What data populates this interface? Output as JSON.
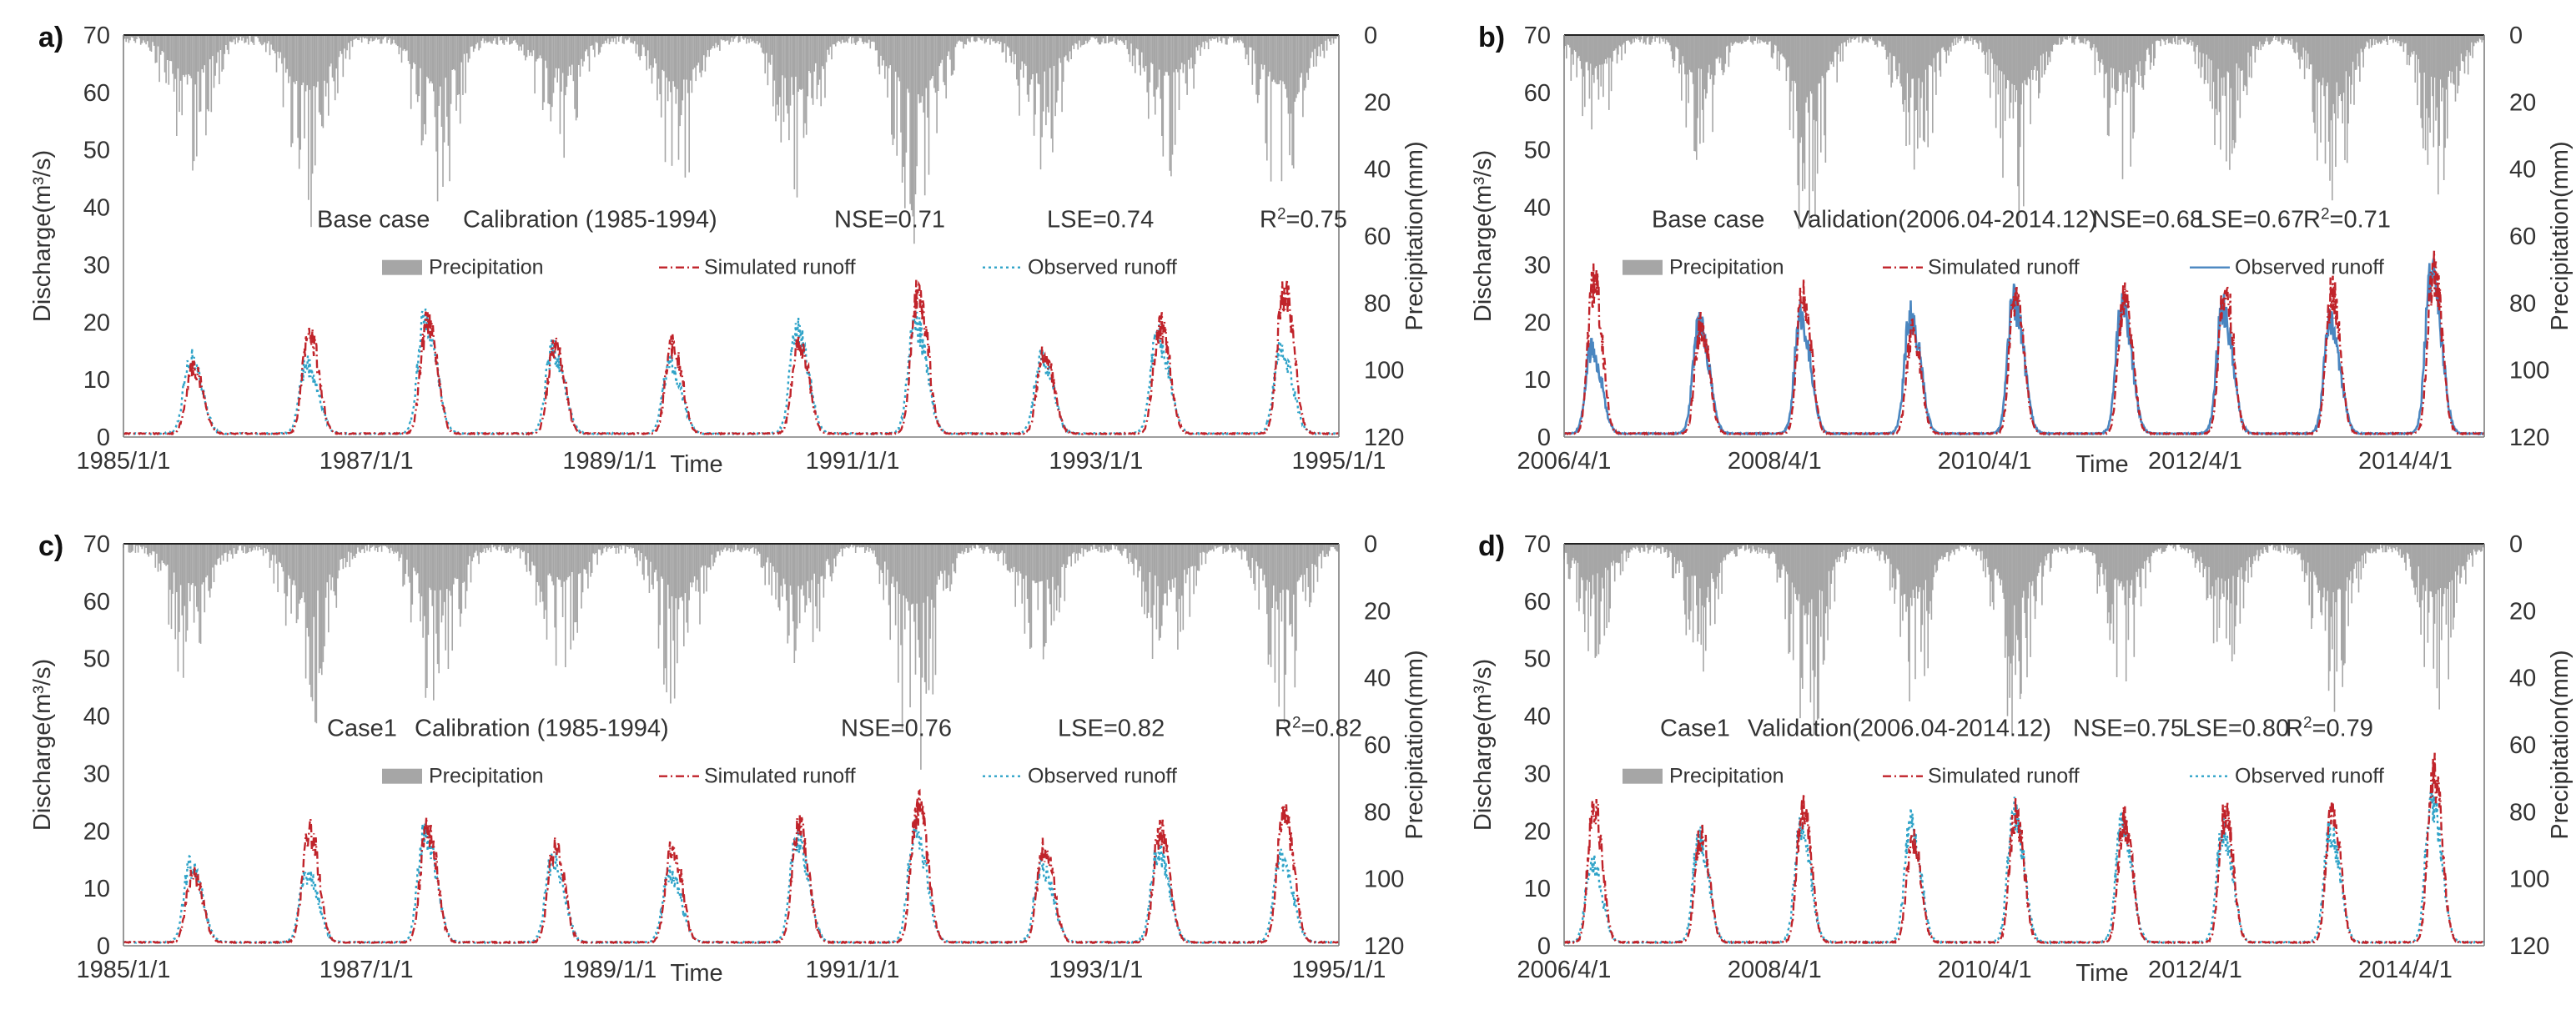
{
  "colors": {
    "precip": "#a6a6a6",
    "simulated": "#c0232a",
    "observed_dotted": "#2fa3c8",
    "observed_solid": "#4a86c0",
    "axis": "#7f7f7f",
    "text": "#333333"
  },
  "chart_data": [
    {
      "panel": "a)",
      "type": "line",
      "case_label": "Base case",
      "period_label": "Calibration (1985-1994)",
      "stats": {
        "nse": "NSE=0.71",
        "lse": "LSE=0.74",
        "r2_prefix": "R",
        "r2_value": "=0.75"
      },
      "xlabel": "Time",
      "ylabel": "Discharge(m³/s)",
      "ylabel2": "Precipitation(mm)",
      "ylim": [
        0,
        70
      ],
      "ylim2": [
        0,
        120
      ],
      "y_ticks": [
        "0",
        "10",
        "20",
        "30",
        "40",
        "50",
        "60",
        "70"
      ],
      "y2_ticks": [
        "0",
        "20",
        "40",
        "60",
        "80",
        "100",
        "120"
      ],
      "x_ticks": [
        "1985/1/1",
        "1987/1/1",
        "1989/1/1",
        "1991/1/1",
        "1993/1/1",
        "1995/1/1"
      ],
      "x_range": [
        "1985-01-01",
        "1995-01-01"
      ],
      "legend": {
        "precip": "Precipitation",
        "simulated": "Simulated runoff",
        "observed": "Observed runoff"
      },
      "observed_style": "dotted",
      "series": [
        {
          "name": "Simulated runoff",
          "peak_dates": [
            "1985-08-10",
            "1986-07-25",
            "1987-07-15",
            "1988-08-01",
            "1989-07-20",
            "1990-08-05",
            "1991-07-28",
            "1992-08-10",
            "1993-07-25",
            "1994-08-01"
          ],
          "peaks": [
            10,
            14.5,
            16.5,
            13,
            13,
            13.5,
            21,
            12,
            16,
            21
          ]
        },
        {
          "name": "Observed runoff",
          "peak_dates": [
            "1985-08-05",
            "1986-07-20",
            "1987-07-10",
            "1988-07-28",
            "1989-07-15",
            "1990-08-01",
            "1991-07-22",
            "1992-08-05",
            "1993-07-20",
            "1994-07-25"
          ],
          "peaks": [
            11,
            10,
            17,
            12,
            10,
            15,
            16,
            11,
            14,
            12
          ]
        },
        {
          "name": "Precipitation",
          "peak_dates": [
            "1985-07-20",
            "1986-07-15",
            "1987-08-01",
            "1988-08-05",
            "1989-07-25",
            "1990-07-20",
            "1991-07-10",
            "1992-07-15",
            "1993-08-01",
            "1994-07-20"
          ],
          "peaks": [
            47,
            60,
            56,
            40,
            55,
            50,
            70,
            45,
            44,
            55
          ]
        }
      ]
    },
    {
      "panel": "b)",
      "type": "line",
      "case_label": "Base case",
      "period_label": "Validation(2006.04-2014.12)",
      "stats": {
        "nse": "NSE=0.68",
        "lse": "LSE=0.67",
        "r2_prefix": "R",
        "r2_value": "=0.71"
      },
      "xlabel": "Time",
      "ylabel": "Discharge(m³/s)",
      "ylabel2": "Precipitation(mm)",
      "ylim": [
        0,
        70
      ],
      "ylim2": [
        0,
        120
      ],
      "y_ticks": [
        "0",
        "10",
        "20",
        "30",
        "40",
        "50",
        "60",
        "70"
      ],
      "y2_ticks": [
        "0",
        "20",
        "40",
        "60",
        "80",
        "100",
        "120"
      ],
      "x_ticks": [
        "2006/4/1",
        "2008/4/1",
        "2010/4/1",
        "2012/4/1",
        "2014/4/1"
      ],
      "x_range": [
        "2006-04-01",
        "2014-12-31"
      ],
      "legend": {
        "precip": "Precipitation",
        "simulated": "Simulated runoff",
        "observed": "Observed runoff"
      },
      "observed_style": "solid",
      "series": [
        {
          "name": "Simulated runoff",
          "peak_dates": [
            "2006-07-25",
            "2007-08-01",
            "2008-07-20",
            "2009-08-05",
            "2010-07-28",
            "2011-08-10",
            "2012-07-25",
            "2013-08-01",
            "2014-07-20"
          ],
          "peaks": [
            22.5,
            16,
            21,
            15,
            20,
            20,
            22,
            21,
            24
          ]
        },
        {
          "name": "Observed runoff",
          "peak_dates": [
            "2006-07-20",
            "2007-07-28",
            "2008-07-15",
            "2009-08-01",
            "2010-07-25",
            "2011-08-05",
            "2012-07-20",
            "2013-07-28",
            "2014-07-15"
          ],
          "peaks": [
            12,
            16,
            17,
            17,
            19,
            18,
            18,
            16,
            23
          ]
        },
        {
          "name": "Precipitation",
          "peak_dates": [
            "2006-07-15",
            "2007-07-20",
            "2008-07-25",
            "2009-08-01",
            "2010-07-20",
            "2011-07-25",
            "2012-07-15",
            "2013-07-20",
            "2014-07-25"
          ],
          "peaks": [
            35,
            40,
            68,
            50,
            60,
            45,
            42,
            58,
            52
          ]
        }
      ]
    },
    {
      "panel": "c)",
      "type": "line",
      "case_label": "Case1",
      "period_label": "Calibration (1985-1994)",
      "stats": {
        "nse": "NSE=0.76",
        "lse": "LSE=0.82",
        "r2_prefix": "R",
        "r2_value": "=0.82"
      },
      "xlabel": "Time",
      "ylabel": "Discharge(m³/s)",
      "ylabel2": "Precipitation(mm)",
      "ylim": [
        0,
        70
      ],
      "ylim2": [
        0,
        120
      ],
      "y_ticks": [
        "0",
        "10",
        "20",
        "30",
        "40",
        "50",
        "60",
        "70"
      ],
      "y2_ticks": [
        "0",
        "20",
        "40",
        "60",
        "80",
        "100",
        "120"
      ],
      "x_ticks": [
        "1985/1/1",
        "1987/1/1",
        "1989/1/1",
        "1991/1/1",
        "1993/1/1",
        "1995/1/1"
      ],
      "x_range": [
        "1985-01-01",
        "1995-01-01"
      ],
      "legend": {
        "precip": "Precipitation",
        "simulated": "Simulated runoff",
        "observed": "Observed runoff"
      },
      "observed_style": "dotted",
      "series": [
        {
          "name": "Simulated runoff",
          "peak_dates": [
            "1985-08-10",
            "1986-07-25",
            "1987-07-15",
            "1988-08-01",
            "1989-07-20",
            "1990-08-05",
            "1991-07-28",
            "1992-08-10",
            "1993-07-25",
            "1994-08-01"
          ],
          "peaks": [
            10,
            16.5,
            17,
            14,
            14,
            17,
            20,
            14,
            16.5,
            18.5
          ]
        },
        {
          "name": "Observed runoff",
          "peak_dates": [
            "1985-08-05",
            "1986-07-20",
            "1987-07-10",
            "1988-07-28",
            "1989-07-15",
            "1990-08-01",
            "1991-07-22",
            "1992-08-05",
            "1993-07-20",
            "1994-07-25"
          ],
          "peaks": [
            11,
            10,
            16,
            12,
            10,
            15,
            16,
            11,
            13,
            12
          ]
        },
        {
          "name": "Precipitation",
          "peak_dates": [
            "1985-07-20",
            "1986-07-15",
            "1987-08-01",
            "1988-08-05",
            "1989-07-25",
            "1990-07-20",
            "1991-07-10",
            "1992-07-15",
            "1993-08-01",
            "1994-07-20"
          ],
          "peaks": [
            47,
            60,
            56,
            40,
            55,
            50,
            70,
            45,
            44,
            55
          ]
        }
      ]
    },
    {
      "panel": "d)",
      "type": "line",
      "case_label": "Case1",
      "period_label": "Validation(2006.04-2014.12)",
      "stats": {
        "nse": "NSE=0.75",
        "lse": "LSE=0.80",
        "r2_prefix": "R",
        "r2_value": "=0.79"
      },
      "xlabel": "Time",
      "ylabel": "Discharge(m³/s)",
      "ylabel2": "Precipitation(mm)",
      "ylim": [
        0,
        70
      ],
      "ylim2": [
        0,
        120
      ],
      "y_ticks": [
        "0",
        "10",
        "20",
        "30",
        "40",
        "50",
        "60",
        "70"
      ],
      "y2_ticks": [
        "0",
        "20",
        "40",
        "60",
        "80",
        "100",
        "120"
      ],
      "x_ticks": [
        "2006/4/1",
        "2008/4/1",
        "2010/4/1",
        "2012/4/1",
        "2014/4/1"
      ],
      "x_range": [
        "2006-04-01",
        "2014-12-31"
      ],
      "legend": {
        "precip": "Precipitation",
        "simulated": "Simulated runoff",
        "observed": "Observed runoff"
      },
      "observed_style": "dotted",
      "series": [
        {
          "name": "Simulated runoff",
          "peak_dates": [
            "2006-07-25",
            "2007-08-01",
            "2008-07-20",
            "2009-08-05",
            "2010-07-28",
            "2011-08-10",
            "2012-07-25",
            "2013-08-01",
            "2014-07-20"
          ],
          "peaks": [
            20,
            16,
            20,
            15,
            19,
            18,
            19,
            20,
            25
          ]
        },
        {
          "name": "Observed runoff",
          "peak_dates": [
            "2006-07-20",
            "2007-07-28",
            "2008-07-15",
            "2009-08-01",
            "2010-07-25",
            "2011-08-05",
            "2012-07-20",
            "2013-07-28",
            "2014-07-15"
          ],
          "peaks": [
            12,
            15,
            16,
            17,
            19,
            17,
            16,
            16,
            21
          ]
        },
        {
          "name": "Precipitation",
          "peak_dates": [
            "2006-07-15",
            "2007-07-20",
            "2008-07-25",
            "2009-08-01",
            "2010-07-20",
            "2011-07-25",
            "2012-07-15",
            "2013-07-20",
            "2014-07-25"
          ],
          "peaks": [
            35,
            40,
            68,
            50,
            60,
            45,
            42,
            58,
            52
          ]
        }
      ]
    }
  ]
}
